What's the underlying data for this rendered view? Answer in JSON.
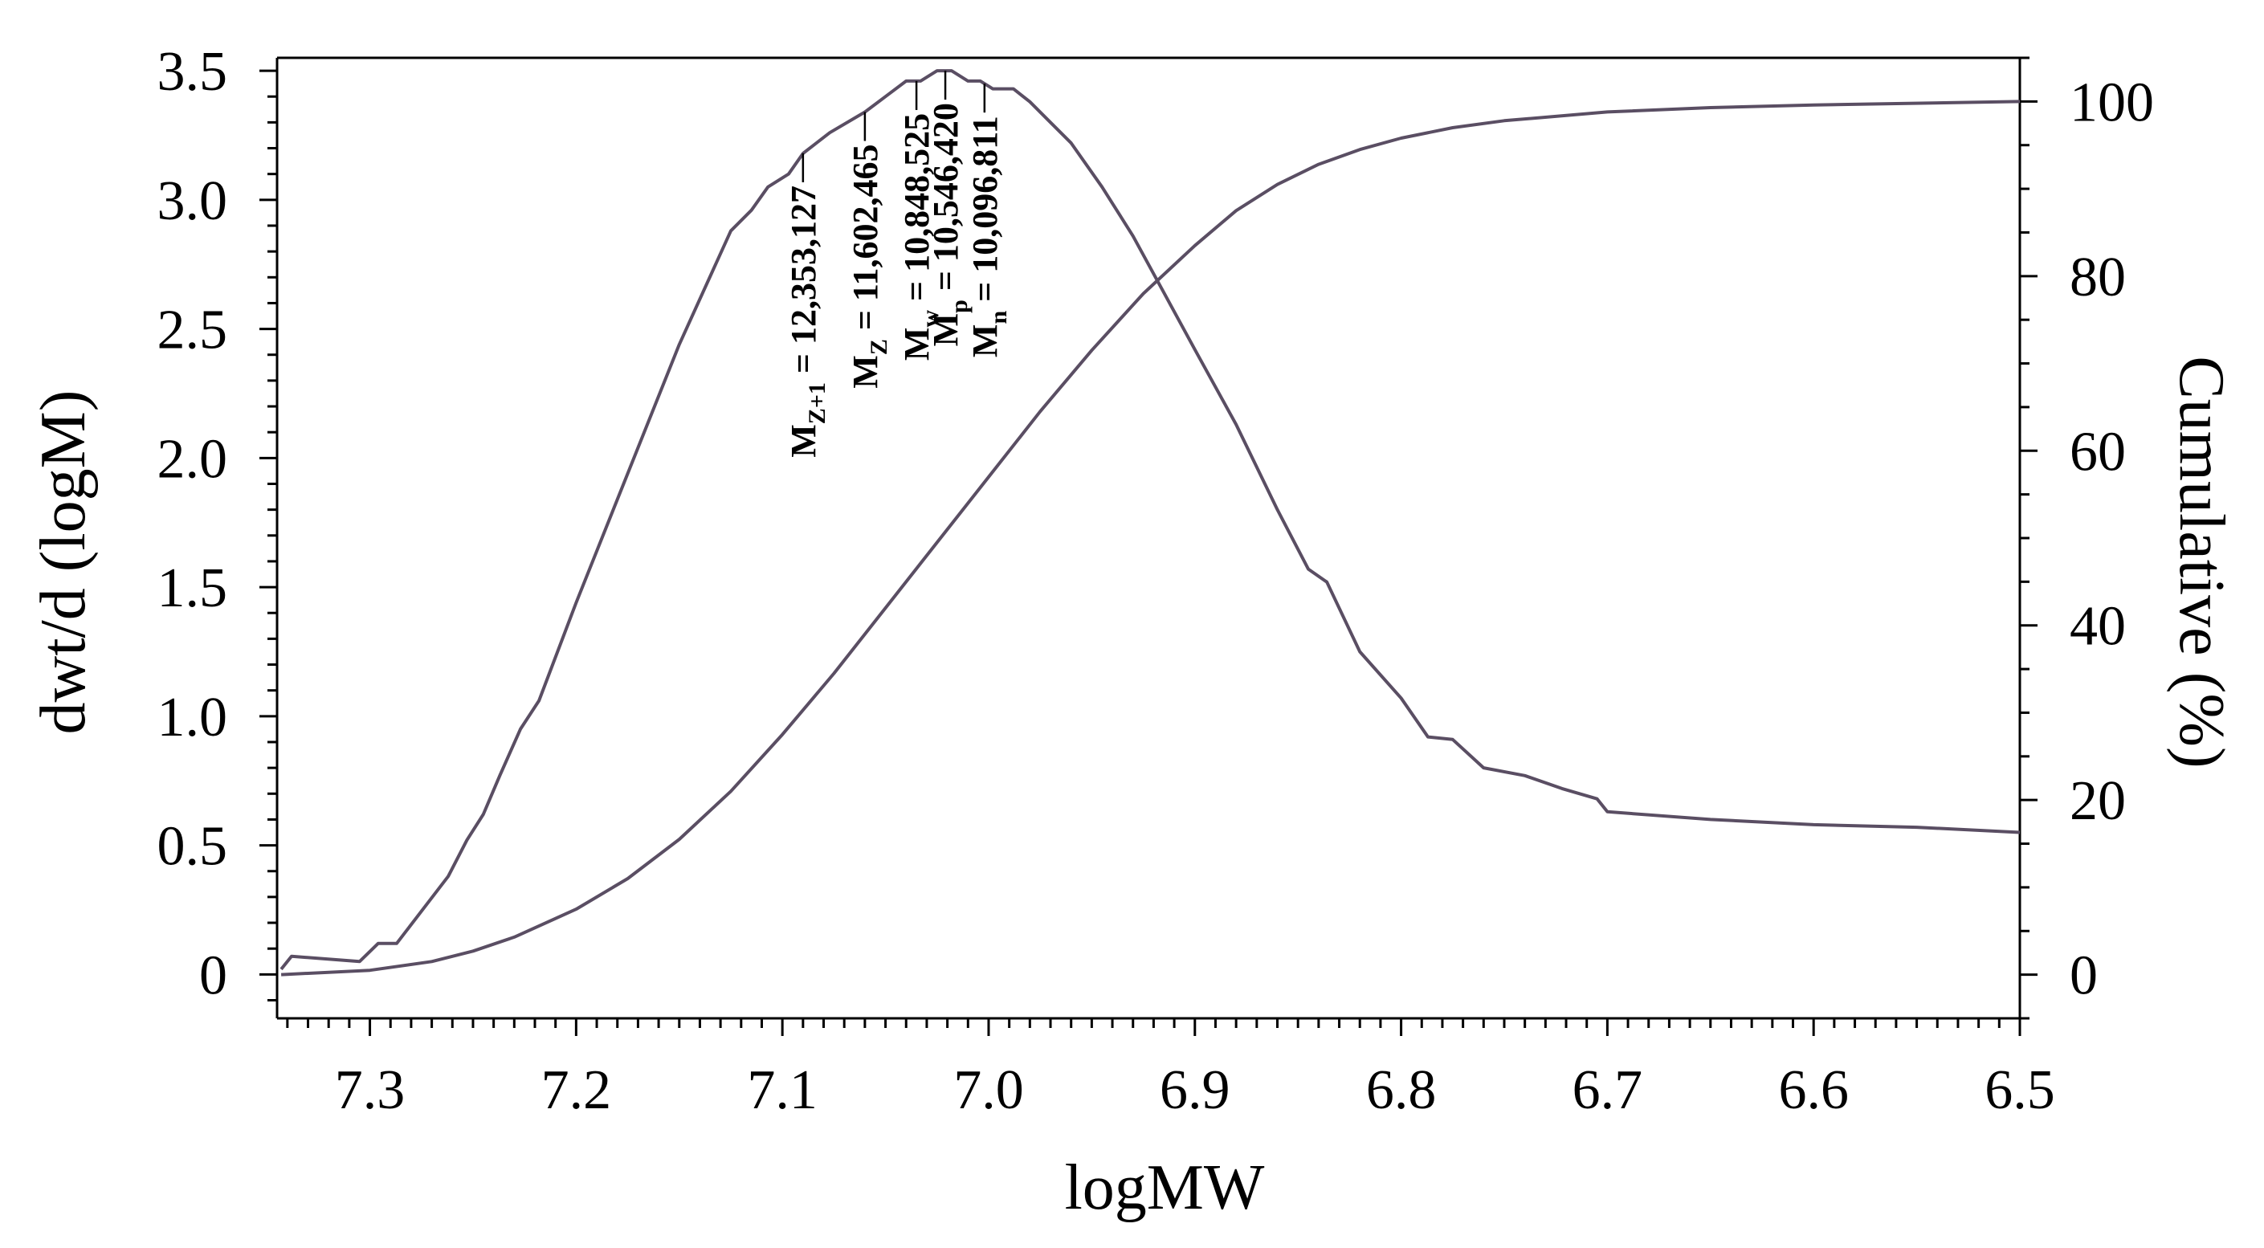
{
  "chart_data": {
    "type": "line",
    "title": "",
    "xlabel": "logMW",
    "ylabel_left": "dwt/d (logM)",
    "ylabel_right": "Cumulative (%)",
    "x_reversed": true,
    "xlim": [
      7.345,
      6.5
    ],
    "ylim_left": [
      -0.17,
      3.55
    ],
    "ylim_right": [
      -5,
      105
    ],
    "x_ticks": [
      7.3,
      7.2,
      7.1,
      7.0,
      6.9,
      6.8,
      6.7,
      6.6,
      6.5
    ],
    "x_tick_labels": [
      "7.3",
      "7.2",
      "7.1",
      "7.0",
      "6.9",
      "6.8",
      "6.7",
      "6.6",
      "6.5"
    ],
    "y_left_ticks": [
      0,
      0.5,
      1.0,
      1.5,
      2.0,
      2.5,
      3.0,
      3.5
    ],
    "y_left_tick_labels": [
      "0",
      "0.5",
      "1.0",
      "1.5",
      "2.0",
      "2.5",
      "3.0",
      "3.5"
    ],
    "y_right_ticks": [
      0,
      20,
      40,
      60,
      80,
      100
    ],
    "y_right_tick_labels": [
      "0",
      "20",
      "40",
      "60",
      "80",
      "100"
    ],
    "series": [
      {
        "name": "dwt/d (logM)",
        "axis": "left",
        "x": [
          7.343,
          7.338,
          7.305,
          7.296,
          7.287,
          7.262,
          7.253,
          7.245,
          7.237,
          7.227,
          7.218,
          7.2,
          7.175,
          7.15,
          7.125,
          7.115,
          7.107,
          7.097,
          7.09,
          7.077,
          7.06,
          7.05,
          7.04,
          7.033,
          7.025,
          7.018,
          7.01,
          7.004,
          6.998,
          6.988,
          6.98,
          6.97,
          6.96,
          6.945,
          6.93,
          6.915,
          6.9,
          6.88,
          6.86,
          6.845,
          6.836,
          6.82,
          6.8,
          6.787,
          6.775,
          6.76,
          6.74,
          6.722,
          6.705,
          6.7,
          6.65,
          6.6,
          6.55,
          6.5
        ],
        "values": [
          0.02,
          0.07,
          0.05,
          0.12,
          0.12,
          0.38,
          0.52,
          0.62,
          0.77,
          0.95,
          1.06,
          1.44,
          1.94,
          2.44,
          2.88,
          2.96,
          3.05,
          3.1,
          3.18,
          3.26,
          3.34,
          3.4,
          3.46,
          3.46,
          3.5,
          3.5,
          3.46,
          3.46,
          3.43,
          3.43,
          3.38,
          3.3,
          3.22,
          3.05,
          2.86,
          2.64,
          2.42,
          2.13,
          1.8,
          1.57,
          1.52,
          1.25,
          1.07,
          0.92,
          0.91,
          0.8,
          0.77,
          0.72,
          0.68,
          0.63,
          0.6,
          0.58,
          0.57,
          0.55
        ]
      },
      {
        "name": "Cumulative (%)",
        "axis": "right",
        "x": [
          7.343,
          7.3,
          7.27,
          7.25,
          7.23,
          7.2,
          7.175,
          7.15,
          7.125,
          7.1,
          7.075,
          7.05,
          7.025,
          7.0,
          6.975,
          6.95,
          6.925,
          6.9,
          6.88,
          6.86,
          6.84,
          6.82,
          6.8,
          6.775,
          6.75,
          6.7,
          6.65,
          6.6,
          6.5
        ],
        "values": [
          0.0,
          0.5,
          1.5,
          2.7,
          4.3,
          7.5,
          11.0,
          15.5,
          21.0,
          27.5,
          34.5,
          42.0,
          49.5,
          57.0,
          64.5,
          71.5,
          78.0,
          83.5,
          87.5,
          90.5,
          92.8,
          94.5,
          95.8,
          97.0,
          97.8,
          98.8,
          99.3,
          99.6,
          100.0
        ]
      }
    ],
    "annotations": [
      {
        "main": "M",
        "sub": "Z+1",
        "value": " = 12,353,127",
        "x": 7.09
      },
      {
        "main": "M",
        "sub": "Z",
        "value": " = 11,602,465",
        "x": 7.06
      },
      {
        "main": "M",
        "sub": "w",
        "value": " = 10,848,525",
        "x": 7.035
      },
      {
        "main": "M",
        "sub": "p",
        "value": " = 10,546,420",
        "x": 7.021
      },
      {
        "main": "M",
        "sub": "n",
        "value": " = 10,096,811",
        "x": 7.002
      }
    ]
  }
}
